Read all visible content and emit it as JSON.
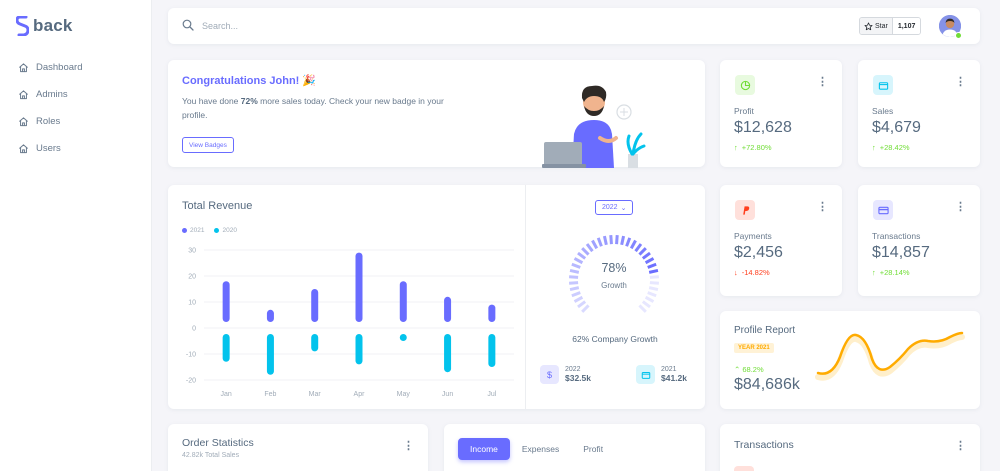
{
  "brand": {
    "name": "back"
  },
  "sidebar": {
    "items": [
      {
        "label": "Dashboard",
        "icon": "home-icon"
      },
      {
        "label": "Admins",
        "icon": "home-icon"
      },
      {
        "label": "Roles",
        "icon": "home-icon"
      },
      {
        "label": "Users",
        "icon": "home-icon"
      }
    ]
  },
  "navbar": {
    "search_placeholder": "Search...",
    "star_label": "Star",
    "star_count": "1,107"
  },
  "congrats": {
    "title": "Congratulations John! 🎉",
    "text_pre": "You have done ",
    "text_bold": "72%",
    "text_post": " more sales today. Check your new badge in your profile.",
    "button": "View Badges"
  },
  "stats": {
    "profit": {
      "label": "Profit",
      "value": "$12,628",
      "change": "+72.80%",
      "direction": "up",
      "accent": "#71dd37"
    },
    "sales": {
      "label": "Sales",
      "value": "$4,679",
      "change": "+28.42%",
      "direction": "up",
      "accent": "#03c3ec"
    },
    "payments": {
      "label": "Payments",
      "value": "$2,456",
      "change": "-14.82%",
      "direction": "down",
      "accent": "#ff3e1d"
    },
    "transactions": {
      "label": "Transactions",
      "value": "$14,857",
      "change": "+28.14%",
      "direction": "up",
      "accent": "#696cff"
    }
  },
  "revenue": {
    "title": "Total Revenue",
    "year_button": "2022",
    "growth_percent": "78%",
    "growth_word": "Growth",
    "growth_value": 78,
    "company_growth": "62% Company Growth",
    "year_stats": [
      {
        "year": "2022",
        "amount": "$32.5k",
        "icon": "dollar-icon"
      },
      {
        "year": "2021",
        "amount": "$41.2k",
        "icon": "wallet-icon"
      }
    ]
  },
  "profile_report": {
    "title": "Profile Report",
    "badge": "YEAR 2021",
    "change": "68.2%",
    "value": "$84,686k"
  },
  "order_statistics": {
    "title": "Order Statistics",
    "subtitle": "42.82k Total Sales"
  },
  "income_tabs": [
    {
      "label": "Income",
      "active": true
    },
    {
      "label": "Expenses",
      "active": false
    },
    {
      "label": "Profit",
      "active": false
    }
  ],
  "transactions_card": {
    "title": "Transactions"
  },
  "chart_data": {
    "type": "bar",
    "title": "Total Revenue",
    "categories": [
      "Jan",
      "Feb",
      "Mar",
      "Apr",
      "May",
      "Jun",
      "Jul"
    ],
    "series": [
      {
        "name": "2021",
        "color": "#696cff",
        "values": [
          18,
          7,
          15,
          29,
          18,
          12,
          9
        ]
      },
      {
        "name": "2020",
        "color": "#03c3ec",
        "values": [
          -13,
          -18,
          -9,
          -14,
          -5,
          -17,
          -15
        ]
      }
    ],
    "yticks": [
      30,
      20,
      10,
      0,
      -10,
      -20
    ],
    "ylim": [
      -20,
      30
    ],
    "legend": "top-left",
    "grid": true
  }
}
